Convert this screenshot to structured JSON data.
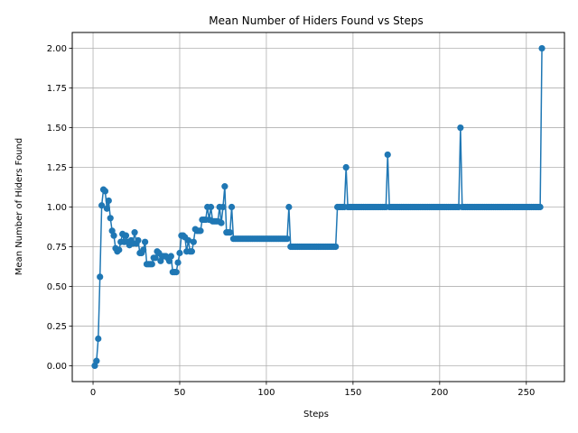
{
  "chart_data": {
    "type": "line",
    "title": "Mean Number of Hiders Found vs Steps",
    "xlabel": "Steps",
    "ylabel": "Mean Number of Hiders Found",
    "xlim": [
      -12,
      272
    ],
    "ylim": [
      -0.1,
      2.1
    ],
    "xticks": [
      0,
      50,
      100,
      150,
      200,
      250
    ],
    "yticks": [
      0.0,
      0.25,
      0.5,
      0.75,
      1.0,
      1.25,
      1.5,
      1.75,
      2.0
    ],
    "ytick_labels": [
      "0.00",
      "0.25",
      "0.50",
      "0.75",
      "1.00",
      "1.25",
      "1.50",
      "1.75",
      "2.00"
    ],
    "grid": true,
    "marker": "circle",
    "color": "#1f77b4",
    "series": [
      {
        "x": [
          1,
          2,
          3,
          4,
          5,
          6,
          7,
          8,
          9,
          10,
          11,
          12,
          13,
          14,
          15,
          16,
          17,
          18,
          19,
          20,
          21,
          22,
          23,
          24,
          25,
          26,
          27,
          28,
          29,
          30,
          31,
          32,
          33,
          34,
          35,
          36,
          37,
          38,
          39,
          40,
          41,
          42,
          43,
          44,
          45,
          46,
          47,
          48,
          49,
          50,
          51,
          52,
          53,
          54,
          55,
          56,
          57,
          58,
          59,
          60,
          61,
          62,
          63,
          64,
          65,
          66,
          67,
          68,
          69,
          70,
          71,
          72,
          73,
          74,
          75,
          76,
          77,
          78,
          79,
          80,
          81,
          82,
          83,
          84,
          85,
          86,
          87,
          88,
          89,
          90,
          91,
          92,
          93,
          94,
          95,
          96,
          97,
          98,
          99,
          100,
          101,
          102,
          103,
          104,
          105,
          106,
          107,
          108,
          109,
          110,
          111,
          112,
          113,
          114,
          115,
          116,
          117,
          118,
          119,
          120,
          121,
          122,
          123,
          124,
          125,
          126,
          127,
          128,
          129,
          130,
          131,
          132,
          133,
          134,
          135,
          136,
          137,
          138,
          139,
          140,
          141,
          142,
          143,
          144,
          145,
          146,
          147,
          148,
          149,
          150,
          151,
          152,
          153,
          154,
          155,
          156,
          157,
          158,
          159,
          160,
          161,
          162,
          163,
          164,
          165,
          166,
          167,
          168,
          169,
          170,
          171,
          172,
          173,
          174,
          175,
          176,
          177,
          178,
          179,
          180,
          181,
          182,
          183,
          184,
          185,
          186,
          187,
          188,
          189,
          190,
          191,
          192,
          193,
          194,
          195,
          196,
          197,
          198,
          199,
          200,
          201,
          202,
          203,
          204,
          205,
          206,
          207,
          208,
          209,
          210,
          211,
          212,
          213,
          214,
          215,
          216,
          217,
          218,
          219,
          220,
          221,
          222,
          223,
          224,
          225,
          226,
          227,
          228,
          229,
          230,
          231,
          232,
          233,
          234,
          235,
          236,
          237,
          238,
          239,
          240,
          241,
          242,
          243,
          244,
          245,
          246,
          247,
          248,
          249,
          250,
          251,
          252,
          253,
          254,
          255,
          256,
          257,
          258,
          259
        ],
        "y": [
          0.0,
          0.03,
          0.17,
          0.56,
          1.01,
          1.11,
          1.1,
          0.99,
          1.04,
          0.93,
          0.85,
          0.82,
          0.74,
          0.72,
          0.73,
          0.78,
          0.83,
          0.78,
          0.82,
          0.78,
          0.76,
          0.79,
          0.77,
          0.84,
          0.77,
          0.79,
          0.71,
          0.71,
          0.73,
          0.78,
          0.64,
          0.64,
          0.64,
          0.64,
          0.68,
          0.68,
          0.72,
          0.71,
          0.66,
          0.69,
          0.69,
          0.69,
          0.68,
          0.66,
          0.69,
          0.59,
          0.59,
          0.59,
          0.65,
          0.71,
          0.82,
          0.82,
          0.81,
          0.72,
          0.79,
          0.72,
          0.72,
          0.78,
          0.86,
          0.85,
          0.85,
          0.85,
          0.92,
          0.92,
          0.92,
          1.0,
          0.92,
          1.0,
          0.91,
          0.91,
          0.91,
          0.91,
          1.0,
          0.9,
          1.0,
          1.13,
          0.84,
          0.84,
          0.84,
          1.0,
          0.8,
          0.8,
          0.8,
          0.8,
          0.8,
          0.8,
          0.8,
          0.8,
          0.8,
          0.8,
          0.8,
          0.8,
          0.8,
          0.8,
          0.8,
          0.8,
          0.8,
          0.8,
          0.8,
          0.8,
          0.8,
          0.8,
          0.8,
          0.8,
          0.8,
          0.8,
          0.8,
          0.8,
          0.8,
          0.8,
          0.8,
          0.8,
          1.0,
          0.75,
          0.75,
          0.75,
          0.75,
          0.75,
          0.75,
          0.75,
          0.75,
          0.75,
          0.75,
          0.75,
          0.75,
          0.75,
          0.75,
          0.75,
          0.75,
          0.75,
          0.75,
          0.75,
          0.75,
          0.75,
          0.75,
          0.75,
          0.75,
          0.75,
          0.75,
          0.75,
          1.0,
          1.0,
          1.0,
          1.0,
          1.0,
          1.25,
          1.0,
          1.0,
          1.0,
          1.0,
          1.0,
          1.0,
          1.0,
          1.0,
          1.0,
          1.0,
          1.0,
          1.0,
          1.0,
          1.0,
          1.0,
          1.0,
          1.0,
          1.0,
          1.0,
          1.0,
          1.0,
          1.0,
          1.0,
          1.33,
          1.0,
          1.0,
          1.0,
          1.0,
          1.0,
          1.0,
          1.0,
          1.0,
          1.0,
          1.0,
          1.0,
          1.0,
          1.0,
          1.0,
          1.0,
          1.0,
          1.0,
          1.0,
          1.0,
          1.0,
          1.0,
          1.0,
          1.0,
          1.0,
          1.0,
          1.0,
          1.0,
          1.0,
          1.0,
          1.0,
          1.0,
          1.0,
          1.0,
          1.0,
          1.0,
          1.0,
          1.0,
          1.0,
          1.0,
          1.0,
          1.0,
          1.5,
          1.0,
          1.0,
          1.0,
          1.0,
          1.0,
          1.0,
          1.0,
          1.0,
          1.0,
          1.0,
          1.0,
          1.0,
          1.0,
          1.0,
          1.0,
          1.0,
          1.0,
          1.0,
          1.0,
          1.0,
          1.0,
          1.0,
          1.0,
          1.0,
          1.0,
          1.0,
          1.0,
          1.0,
          1.0,
          1.0,
          1.0,
          1.0,
          1.0,
          1.0,
          1.0,
          1.0,
          1.0,
          1.0,
          1.0,
          1.0,
          1.0,
          1.0,
          1.0,
          1.0,
          1.0,
          1.0,
          2.0
        ]
      }
    ]
  }
}
